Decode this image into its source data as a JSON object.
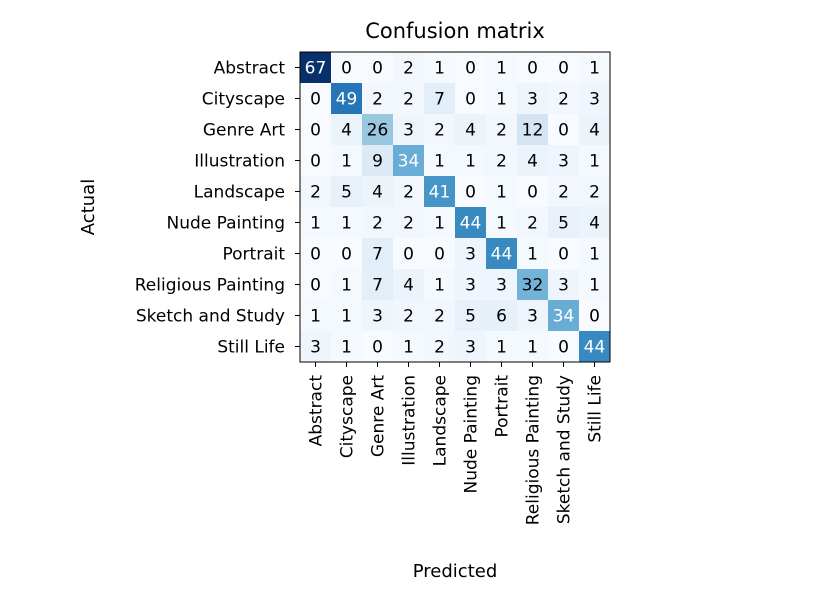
{
  "chart_data": {
    "type": "heatmap",
    "title": "Confusion matrix",
    "xlabel": "Predicted",
    "ylabel": "Actual",
    "x_categories": [
      "Abstract",
      "Cityscape",
      "Genre Art",
      "Illustration",
      "Landscape",
      "Nude Painting",
      "Portrait",
      "Religious Painting",
      "Sketch and Study",
      "Still Life"
    ],
    "y_categories": [
      "Abstract",
      "Cityscape",
      "Genre Art",
      "Illustration",
      "Landscape",
      "Nude Painting",
      "Portrait",
      "Religious Painting",
      "Sketch and Study",
      "Still Life"
    ],
    "values": [
      [
        67,
        0,
        0,
        2,
        1,
        0,
        1,
        0,
        0,
        1
      ],
      [
        0,
        49,
        2,
        2,
        7,
        0,
        1,
        3,
        2,
        3
      ],
      [
        0,
        4,
        26,
        3,
        2,
        4,
        2,
        12,
        0,
        4
      ],
      [
        0,
        1,
        9,
        34,
        1,
        1,
        2,
        4,
        3,
        1
      ],
      [
        2,
        5,
        4,
        2,
        41,
        0,
        1,
        0,
        2,
        2
      ],
      [
        1,
        1,
        2,
        2,
        1,
        44,
        1,
        2,
        5,
        4
      ],
      [
        0,
        0,
        7,
        0,
        0,
        3,
        44,
        1,
        0,
        1
      ],
      [
        0,
        1,
        7,
        4,
        1,
        3,
        3,
        32,
        3,
        1
      ],
      [
        1,
        1,
        3,
        2,
        2,
        5,
        6,
        3,
        34,
        0
      ],
      [
        3,
        1,
        0,
        1,
        2,
        3,
        1,
        1,
        0,
        44
      ]
    ],
    "colormap": "Blues",
    "value_range": [
      0,
      67
    ]
  }
}
